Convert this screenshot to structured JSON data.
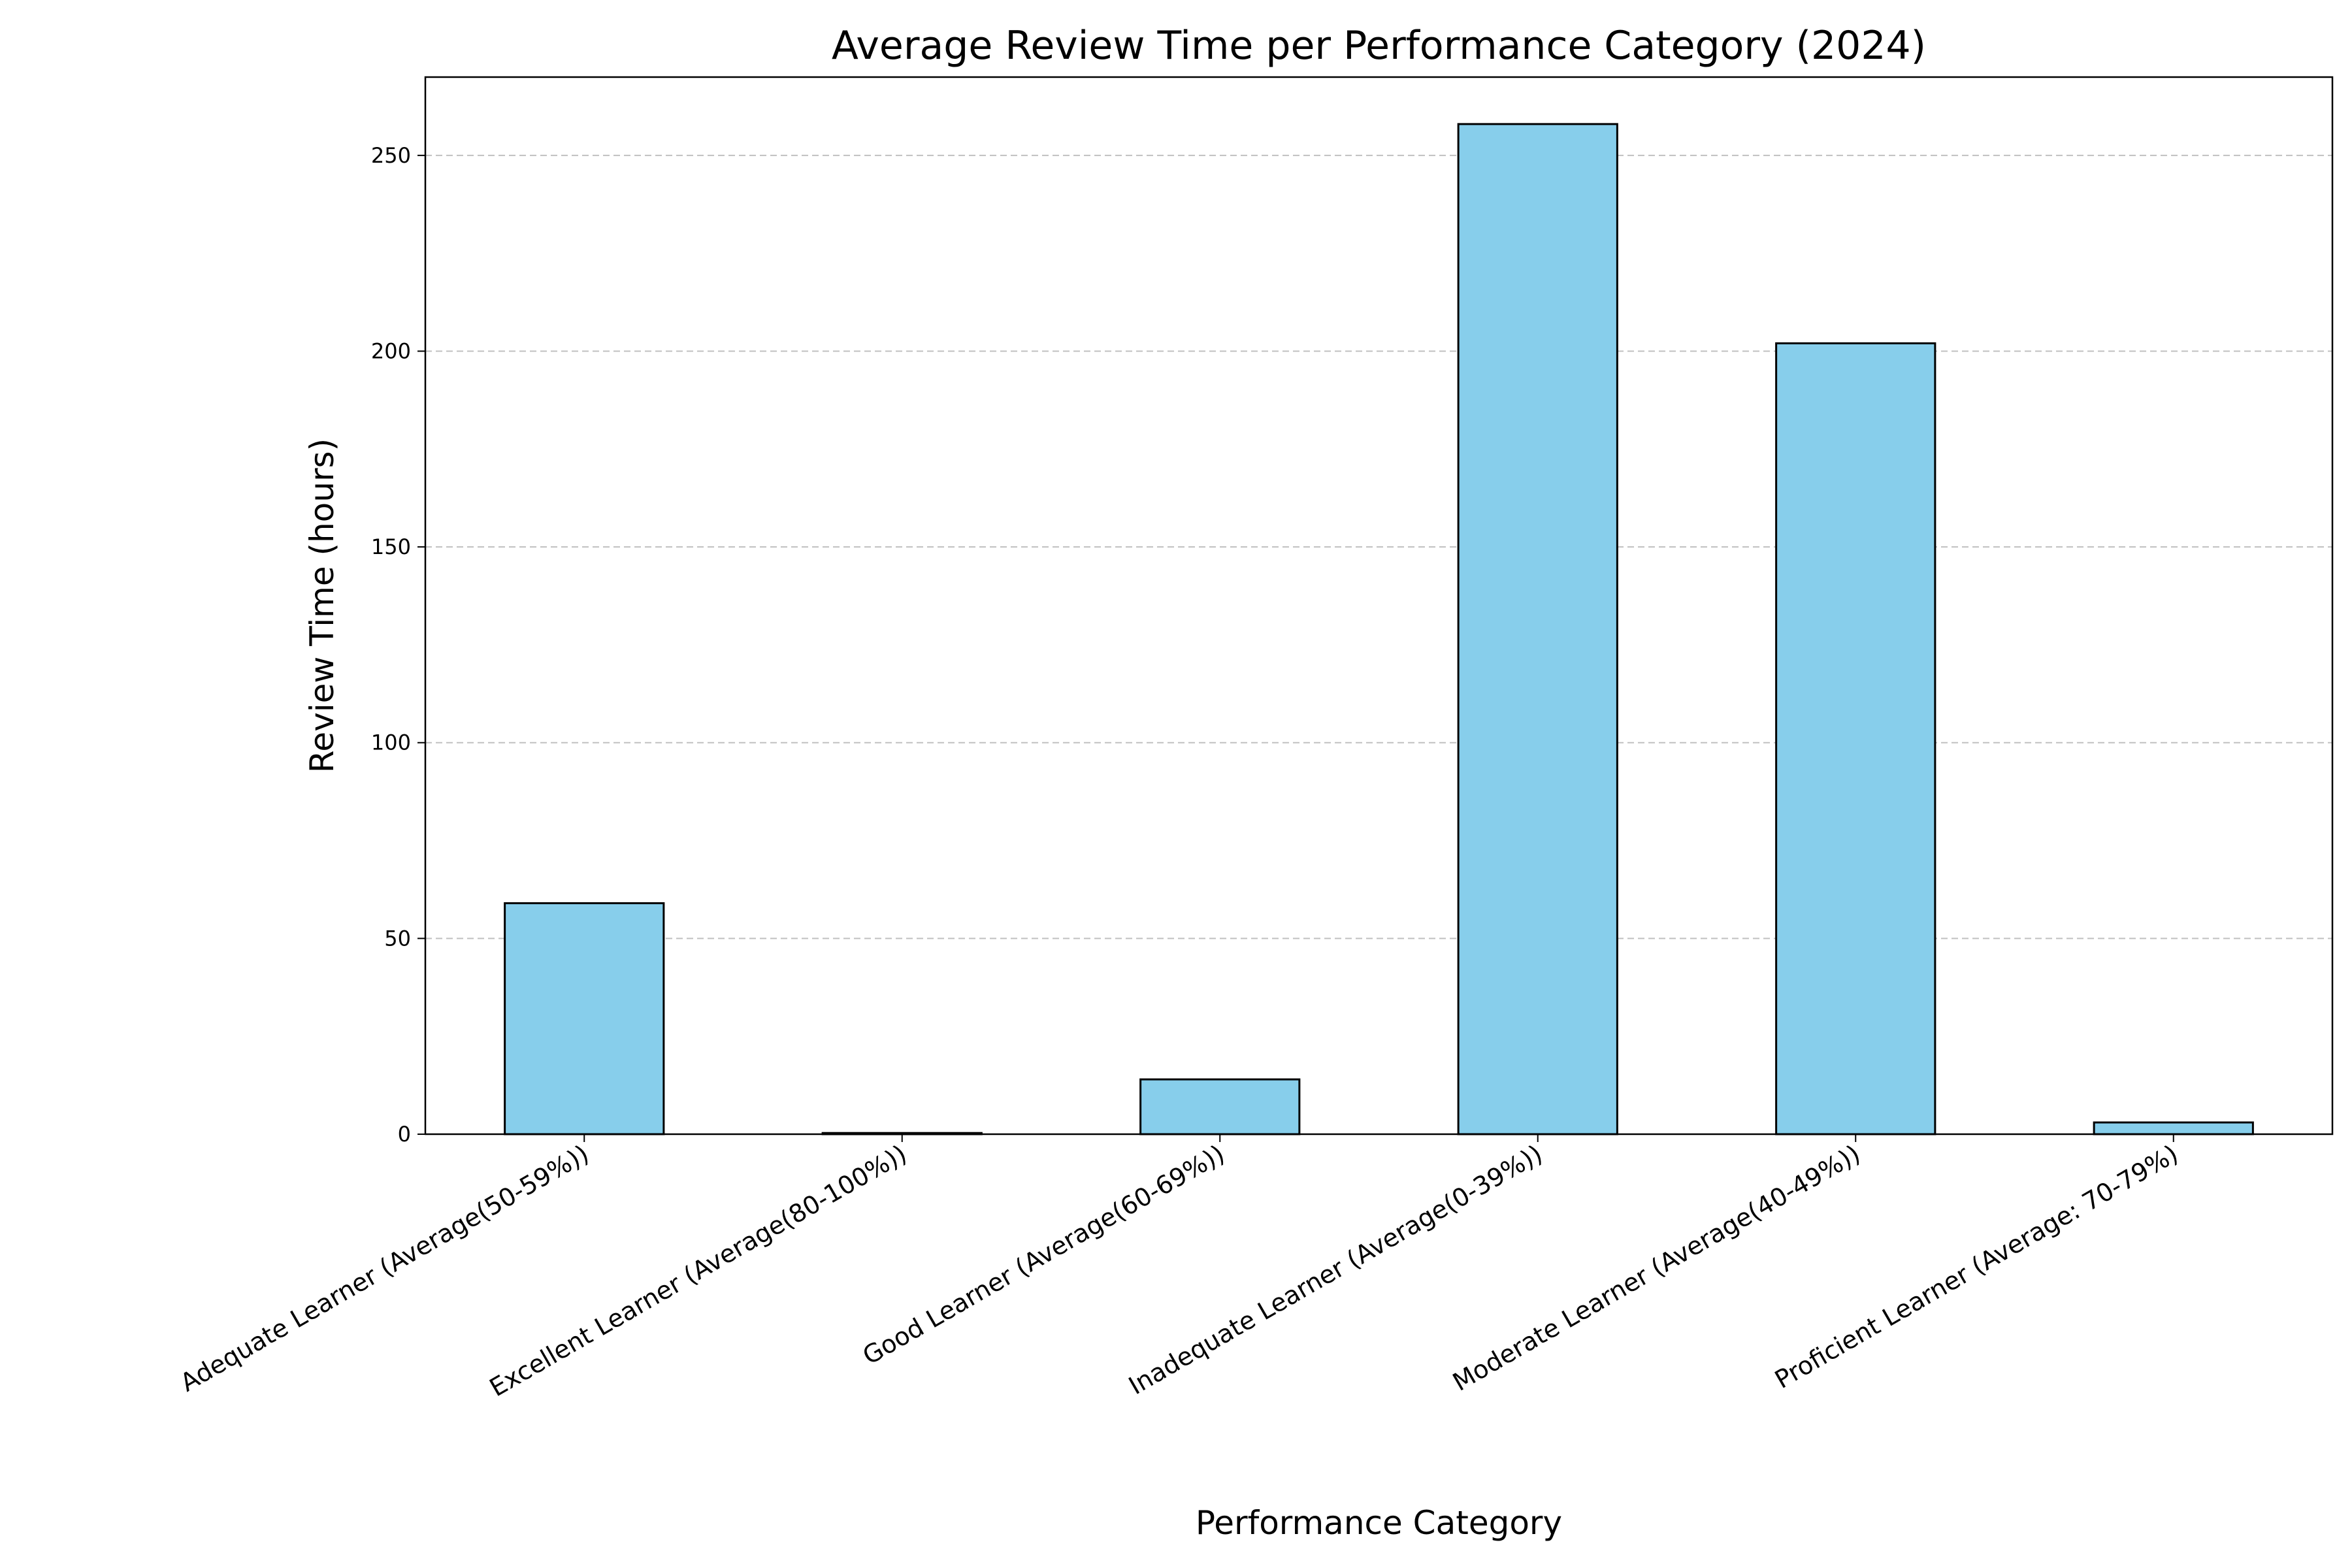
{
  "chart_data": {
    "type": "bar",
    "title": "Average Review Time per Performance Category (2024)",
    "xlabel": "Performance Category",
    "ylabel": "Review Time (hours)",
    "categories": [
      "Adequate Learner (Average(50-59%))",
      "Excellent Learner (Average(80-100%))",
      "Good Learner (Average(60-69%))",
      "Inadequate Learner (Average(0-39%))",
      "Moderate Learner (Average(40-49%))",
      "Proficient Learner (Average: 70-79%)"
    ],
    "values": [
      59,
      0.3,
      14,
      258,
      202,
      3
    ],
    "ylim": [
      0,
      270
    ],
    "yticks": [
      0,
      50,
      100,
      150,
      200,
      250
    ],
    "grid": "y-dashed",
    "colors": {
      "bar_fill": "#87CEEB",
      "bar_edge": "#000000",
      "grid": "#c0c0c0"
    }
  }
}
